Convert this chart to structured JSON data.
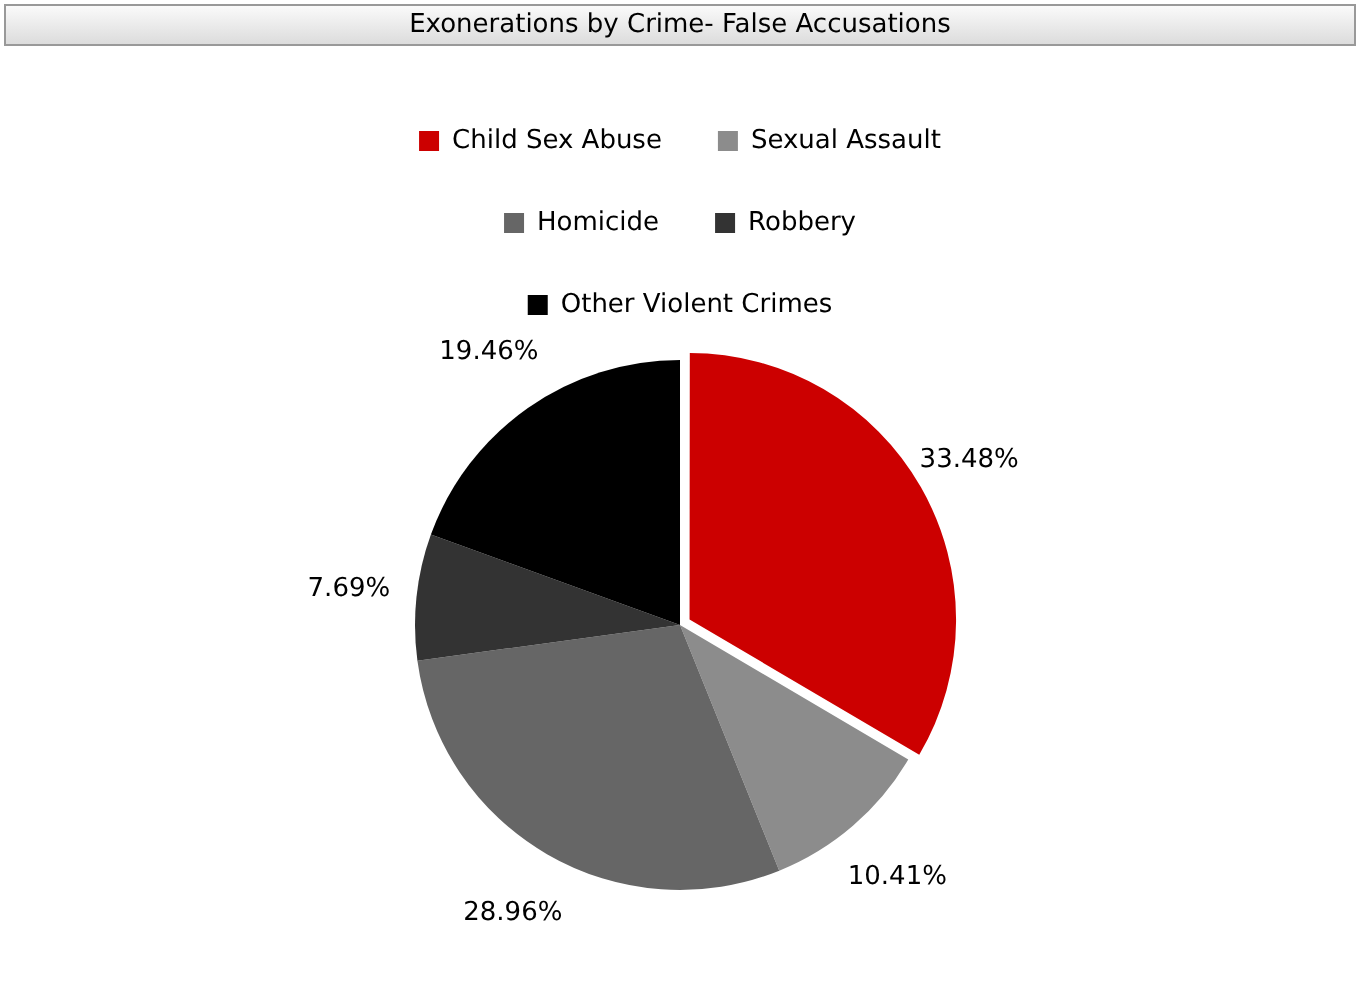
{
  "chart_data": {
    "type": "pie",
    "title": "Exonerations by Crime- False Accusations",
    "categories": [
      "Child Sex Abuse",
      "Sexual Assault",
      "Homicide",
      "Robbery",
      "Other Violent Crimes"
    ],
    "values": [
      33.48,
      10.41,
      28.96,
      7.69,
      19.46
    ],
    "value_labels": [
      "33.48%",
      "10.41%",
      "28.96%",
      "7.69%",
      "19.46%"
    ],
    "colors": [
      "#cc0000",
      "#8c8c8c",
      "#666666",
      "#333333",
      "#000000"
    ],
    "legend": "top"
  }
}
